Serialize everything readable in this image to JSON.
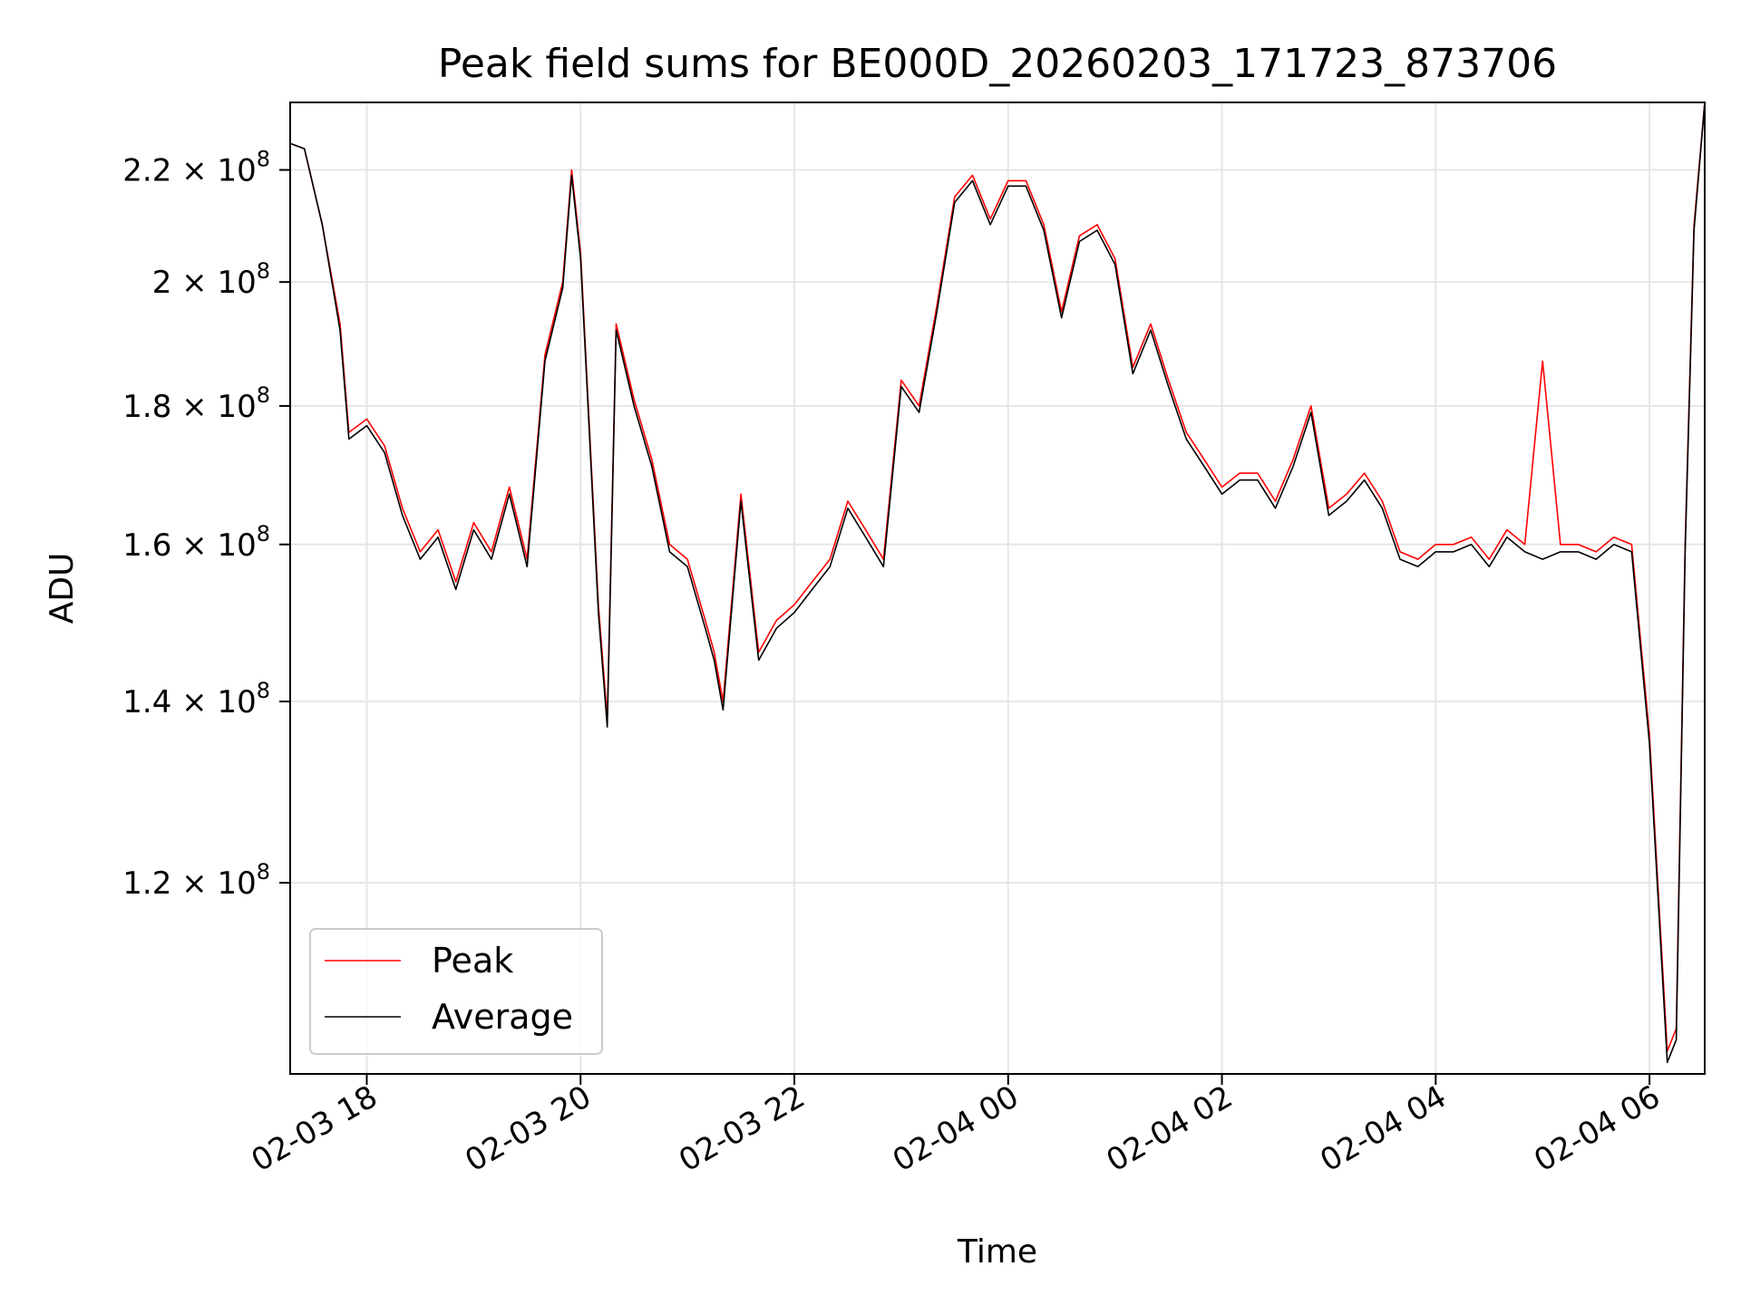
{
  "chart_data": {
    "type": "line",
    "title": "Peak field sums for BE000D_20260203_171723_873706",
    "xlabel": "Time",
    "ylabel": "ADU",
    "yscale": "log",
    "ylim": [
      102000000,
      233000000
    ],
    "xlim": [
      "02-03 17:17",
      "02-04 06:31"
    ],
    "grid": true,
    "legend": "lower-left",
    "x_ticks": [
      "02-03 18",
      "02-03 20",
      "02-03 22",
      "02-04 00",
      "02-04 02",
      "02-04 04",
      "02-04 06"
    ],
    "y_ticks": [
      {
        "value": 120000000,
        "mantissa": "1.2",
        "exponent": "8"
      },
      {
        "value": 140000000,
        "mantissa": "1.4",
        "exponent": "8"
      },
      {
        "value": 160000000,
        "mantissa": "1.6",
        "exponent": "8"
      },
      {
        "value": 180000000,
        "mantissa": "1.8",
        "exponent": "8"
      },
      {
        "value": 200000000,
        "mantissa": "2",
        "exponent": "8"
      },
      {
        "value": 220000000,
        "mantissa": "2.2",
        "exponent": "8"
      }
    ],
    "x": [
      "02-03 17:17",
      "02-03 17:25",
      "02-03 17:35",
      "02-03 17:45",
      "02-03 17:50",
      "02-03 18:00",
      "02-03 18:10",
      "02-03 18:20",
      "02-03 18:30",
      "02-03 18:40",
      "02-03 18:50",
      "02-03 19:00",
      "02-03 19:10",
      "02-03 19:20",
      "02-03 19:30",
      "02-03 19:40",
      "02-03 19:50",
      "02-03 19:55",
      "02-03 20:00",
      "02-03 20:10",
      "02-03 20:15",
      "02-03 20:20",
      "02-03 20:30",
      "02-03 20:40",
      "02-03 20:50",
      "02-03 21:00",
      "02-03 21:10",
      "02-03 21:15",
      "02-03 21:20",
      "02-03 21:30",
      "02-03 21:40",
      "02-03 21:50",
      "02-03 22:00",
      "02-03 22:10",
      "02-03 22:20",
      "02-03 22:30",
      "02-03 22:40",
      "02-03 22:45",
      "02-03 22:50",
      "02-03 23:00",
      "02-03 23:10",
      "02-03 23:20",
      "02-03 23:30",
      "02-03 23:40",
      "02-03 23:50",
      "02-04 00:00",
      "02-04 00:10",
      "02-04 00:20",
      "02-04 00:30",
      "02-04 00:40",
      "02-04 00:50",
      "02-04 01:00",
      "02-04 01:10",
      "02-04 01:20",
      "02-04 01:30",
      "02-04 01:40",
      "02-04 01:50",
      "02-04 02:00",
      "02-04 02:10",
      "02-04 02:20",
      "02-04 02:30",
      "02-04 02:40",
      "02-04 02:50",
      "02-04 03:00",
      "02-04 03:10",
      "02-04 03:20",
      "02-04 03:30",
      "02-04 03:40",
      "02-04 03:50",
      "02-04 04:00",
      "02-04 04:10",
      "02-04 04:20",
      "02-04 04:30",
      "02-04 04:40",
      "02-04 04:50",
      "02-04 05:00",
      "02-04 05:10",
      "02-04 05:20",
      "02-04 05:30",
      "02-04 05:40",
      "02-04 05:50",
      "02-04 06:00",
      "02-04 06:10",
      "02-04 06:15",
      "02-04 06:20",
      "02-04 06:25",
      "02-04 06:31"
    ],
    "series": [
      {
        "name": "Peak",
        "color": "#ff0000",
        "values": [
          225000000,
          224000000,
          210000000,
          193000000,
          176000000,
          178000000,
          174000000,
          165000000,
          159000000,
          162000000,
          155000000,
          163000000,
          159000000,
          168000000,
          158000000,
          188000000,
          200000000,
          220000000,
          205000000,
          152000000,
          138000000,
          193000000,
          181000000,
          172000000,
          160000000,
          158000000,
          150000000,
          146000000,
          140000000,
          167000000,
          146000000,
          150000000,
          152000000,
          155000000,
          158000000,
          166000000,
          162000000,
          160000000,
          158000000,
          184000000,
          180000000,
          196000000,
          215000000,
          219000000,
          211000000,
          218000000,
          218000000,
          210000000,
          195000000,
          208000000,
          210000000,
          204000000,
          186000000,
          193000000,
          184000000,
          176000000,
          172000000,
          168000000,
          170000000,
          170000000,
          166000000,
          172000000,
          180000000,
          165000000,
          167000000,
          170000000,
          166000000,
          159000000,
          158000000,
          160000000,
          160000000,
          161000000,
          158000000,
          162000000,
          160000000,
          187000000,
          160000000,
          160000000,
          159000000,
          161000000,
          160000000,
          136000000,
          104000000,
          106000000,
          160000000,
          210000000,
          233000000
        ]
      },
      {
        "name": "Average",
        "color": "#000000",
        "values": [
          225000000,
          224000000,
          210000000,
          192000000,
          175000000,
          177000000,
          173000000,
          164000000,
          158000000,
          161000000,
          154000000,
          162000000,
          158000000,
          167000000,
          157000000,
          187000000,
          199000000,
          219000000,
          204000000,
          151000000,
          137000000,
          192000000,
          180000000,
          171000000,
          159000000,
          157000000,
          149000000,
          145000000,
          139000000,
          166000000,
          145000000,
          149000000,
          151000000,
          154000000,
          157000000,
          165000000,
          161000000,
          159000000,
          157000000,
          183000000,
          179000000,
          195000000,
          214000000,
          218000000,
          210000000,
          217000000,
          217000000,
          209000000,
          194000000,
          207000000,
          209000000,
          203000000,
          185000000,
          192000000,
          183000000,
          175000000,
          171000000,
          167000000,
          169000000,
          169000000,
          165000000,
          171000000,
          179000000,
          164000000,
          166000000,
          169000000,
          165000000,
          158000000,
          157000000,
          159000000,
          159000000,
          160000000,
          157000000,
          161000000,
          159000000,
          158000000,
          159000000,
          159000000,
          158000000,
          160000000,
          159000000,
          135000000,
          103000000,
          105000000,
          159000000,
          209000000,
          233000000
        ]
      }
    ]
  }
}
